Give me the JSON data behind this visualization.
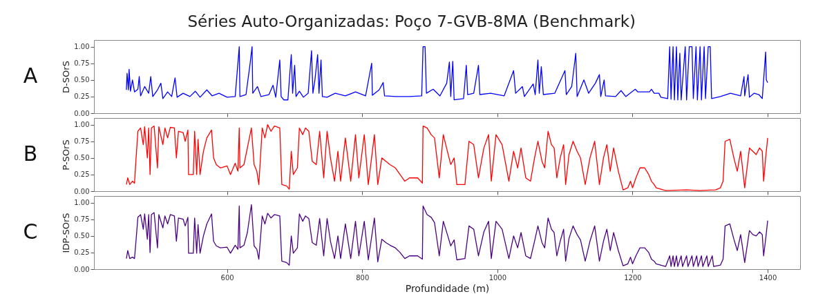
{
  "chart_data": [
    {
      "type": "line",
      "title": "Séries Auto-Organizadas: Poço 7-GVB-8MA (Benchmark)",
      "ylabel": "D-SOrS",
      "annotations": [
        "A"
      ],
      "xlim": [
        403,
        1448
      ],
      "xticks": [
        600,
        800,
        1000,
        1200,
        1400
      ],
      "ylim": [
        0,
        1.1
      ],
      "yticks": [
        {
          "value": 0,
          "label": "0.00"
        },
        {
          "value": 0.25,
          "label": "0.25"
        },
        {
          "value": 0.5,
          "label": "0.50"
        },
        {
          "value": 0.75,
          "label": "0.75"
        },
        {
          "value": 1,
          "label": "1.00"
        }
      ],
      "tick_labels": "y",
      "grid": false,
      "series": [
        {
          "color": "#0000ff",
          "x": [
            451,
            452,
            454,
            455,
            457,
            460,
            463,
            468,
            470,
            472,
            478,
            484,
            487,
            490,
            497,
            502,
            505,
            512,
            518,
            523,
            526,
            535,
            545,
            553,
            560,
            570,
            578,
            588,
            600,
            612,
            618,
            619,
            628,
            634,
            637,
            638,
            645,
            650,
            662,
            668,
            672,
            678,
            680,
            684,
            690,
            694,
            695,
            697,
            700,
            702,
            707,
            713,
            720,
            725,
            727,
            730,
            734,
            736,
            739,
            741,
            748,
            760,
            775,
            790,
            805,
            814,
            815,
            825,
            831,
            833,
            850,
            870,
            888,
            890,
            893,
            895,
            905,
            915,
            925,
            929,
            931,
            934,
            936,
            950,
            954,
            956,
            965,
            972,
            974,
            990,
            1010,
            1024,
            1027,
            1037,
            1040,
            1053,
            1056,
            1060,
            1062,
            1065,
            1068,
            1085,
            1100,
            1102,
            1110,
            1116,
            1118,
            1128,
            1135,
            1145,
            1151,
            1153,
            1158,
            1160,
            1175,
            1183,
            1190,
            1204,
            1208,
            1225,
            1228,
            1232,
            1239,
            1242,
            1252,
            1255,
            1257,
            1260,
            1262,
            1265,
            1267,
            1270,
            1272,
            1278,
            1280,
            1284,
            1288,
            1290,
            1294,
            1296,
            1300,
            1302,
            1306,
            1308,
            1312,
            1315,
            1317,
            1330,
            1345,
            1360,
            1365,
            1366,
            1371,
            1373,
            1380,
            1387,
            1392,
            1397,
            1398,
            1400
          ],
          "values": [
            0.35,
            0.6,
            0.35,
            0.66,
            0.33,
            0.5,
            0.32,
            0.36,
            0.55,
            0.26,
            0.4,
            0.3,
            0.55,
            0.25,
            0.35,
            0.45,
            0.22,
            0.32,
            0.25,
            0.53,
            0.24,
            0.3,
            0.25,
            0.33,
            0.24,
            0.35,
            0.26,
            0.3,
            0.24,
            0.25,
            1.0,
            0.25,
            0.28,
            0.74,
            1.0,
            0.3,
            0.4,
            0.25,
            0.28,
            0.42,
            0.24,
            0.8,
            0.25,
            0.2,
            0.2,
            0.75,
            0.88,
            0.3,
            0.72,
            0.25,
            0.33,
            0.24,
            0.3,
            0.94,
            0.3,
            0.5,
            0.88,
            0.3,
            0.8,
            0.25,
            0.24,
            0.3,
            0.26,
            0.32,
            0.26,
            0.75,
            0.27,
            0.35,
            0.46,
            0.26,
            0.25,
            0.25,
            0.26,
            1.0,
            1.0,
            0.3,
            0.36,
            0.26,
            0.45,
            0.77,
            0.25,
            0.78,
            0.2,
            0.22,
            0.72,
            0.28,
            0.3,
            0.72,
            0.28,
            0.3,
            0.26,
            0.64,
            0.3,
            0.4,
            0.25,
            0.44,
            0.28,
            0.8,
            0.3,
            0.7,
            0.28,
            0.3,
            0.64,
            0.28,
            0.4,
            0.9,
            0.25,
            0.5,
            0.3,
            0.45,
            0.58,
            0.25,
            0.5,
            0.26,
            0.25,
            0.34,
            0.25,
            0.36,
            0.32,
            0.32,
            0.36,
            0.3,
            0.3,
            0.24,
            0.22,
            1.0,
            0.21,
            1.0,
            0.2,
            1.0,
            0.2,
            0.9,
            0.2,
            1.0,
            0.2,
            1.0,
            1.0,
            0.22,
            1.0,
            0.2,
            1.0,
            0.2,
            1.0,
            0.22,
            1.0,
            1.0,
            0.22,
            0.25,
            0.3,
            0.26,
            0.55,
            0.26,
            0.58,
            0.24,
            0.3,
            0.28,
            0.22,
            0.92,
            0.5,
            0.46
          ]
        }
      ]
    },
    {
      "type": "line",
      "ylabel": "P-SOrS",
      "annotations": [
        "B"
      ],
      "xlim": [
        403,
        1448
      ],
      "xticks": [
        600,
        800,
        1000,
        1200,
        1400
      ],
      "ylim": [
        0,
        1.1
      ],
      "yticks": [
        {
          "value": 0,
          "label": "0.00"
        },
        {
          "value": 0.25,
          "label": "0.25"
        },
        {
          "value": 0.5,
          "label": "0.50"
        },
        {
          "value": 0.75,
          "label": "0.75"
        },
        {
          "value": 1,
          "label": "1.00"
        }
      ],
      "tick_labels": "y",
      "grid": false,
      "series": [
        {
          "color": "#ff0000",
          "x": [
            451,
            453,
            456,
            460,
            463,
            465,
            468,
            472,
            476,
            478,
            482,
            484,
            486,
            488,
            492,
            497,
            499,
            505,
            508,
            512,
            516,
            522,
            525,
            528,
            535,
            538,
            542,
            543,
            550,
            552,
            555,
            557,
            560,
            565,
            570,
            577,
            580,
            584,
            590,
            600,
            605,
            612,
            616,
            618,
            619,
            625,
            630,
            636,
            640,
            644,
            647,
            652,
            656,
            660,
            665,
            670,
            678,
            681,
            688,
            692,
            695,
            698,
            704,
            707,
            712,
            716,
            721,
            726,
            732,
            737,
            743,
            748,
            753,
            759,
            764,
            768,
            775,
            783,
            790,
            795,
            803,
            809,
            818,
            823,
            829,
            835,
            841,
            849,
            856,
            863,
            870,
            882,
            889,
            890,
            896,
            902,
            907,
            914,
            920,
            926,
            931,
            936,
            940,
            952,
            958,
            965,
            972,
            980,
            987,
            991,
            998,
            1007,
            1017,
            1024,
            1030,
            1035,
            1042,
            1049,
            1055,
            1060,
            1066,
            1070,
            1075,
            1080,
            1084,
            1088,
            1093,
            1098,
            1101,
            1106,
            1112,
            1118,
            1123,
            1130,
            1137,
            1144,
            1151,
            1157,
            1162,
            1167,
            1172,
            1179,
            1186,
            1193,
            1197,
            1200,
            1205,
            1211,
            1218,
            1224,
            1228,
            1232,
            1235,
            1249,
            1280,
            1300,
            1323,
            1330,
            1334,
            1337,
            1344,
            1350,
            1355,
            1360,
            1366,
            1373,
            1378,
            1383,
            1388,
            1392,
            1394,
            1397,
            1400
          ],
          "values": [
            0.1,
            0.2,
            0.1,
            0.15,
            0.12,
            0.45,
            0.9,
            0.95,
            0.7,
            0.97,
            0.5,
            0.95,
            0.25,
            0.95,
            0.98,
            0.35,
            0.97,
            0.7,
            0.95,
            0.8,
            0.96,
            0.95,
            0.5,
            0.9,
            0.88,
            0.75,
            0.92,
            0.25,
            0.25,
            0.9,
            0.25,
            0.78,
            0.25,
            0.6,
            0.8,
            0.92,
            0.5,
            0.4,
            0.35,
            0.38,
            0.25,
            0.42,
            0.3,
            0.95,
            0.35,
            0.4,
            0.65,
            0.95,
            0.4,
            0.3,
            0.1,
            0.95,
            0.8,
            1.0,
            0.9,
            0.98,
            0.95,
            0.1,
            0.08,
            0.03,
            0.6,
            0.25,
            0.35,
            0.95,
            0.85,
            0.95,
            0.9,
            0.45,
            0.4,
            0.9,
            0.2,
            0.9,
            0.5,
            0.15,
            0.6,
            0.15,
            0.8,
            0.15,
            0.85,
            0.2,
            0.85,
            0.1,
            0.85,
            0.1,
            0.5,
            0.45,
            0.4,
            0.35,
            0.25,
            0.15,
            0.2,
            0.2,
            0.12,
            0.98,
            0.95,
            0.85,
            0.8,
            0.2,
            0.85,
            0.6,
            0.4,
            0.5,
            0.1,
            0.1,
            0.75,
            0.7,
            0.2,
            0.65,
            0.85,
            0.15,
            0.85,
            0.7,
            0.15,
            0.6,
            0.35,
            0.65,
            0.2,
            0.15,
            0.5,
            0.75,
            0.45,
            0.35,
            0.9,
            0.7,
            0.65,
            0.2,
            0.5,
            0.7,
            0.1,
            0.55,
            0.75,
            0.6,
            0.5,
            0.1,
            0.5,
            0.75,
            0.1,
            0.5,
            0.7,
            0.3,
            0.65,
            0.3,
            0.02,
            0.05,
            0.15,
            0.05,
            0.2,
            0.35,
            0.35,
            0.25,
            0.15,
            0.1,
            0.05,
            0.01,
            0.02,
            0.01,
            0.02,
            0.05,
            0.15,
            0.75,
            0.78,
            0.5,
            0.3,
            0.6,
            0.05,
            0.65,
            0.6,
            0.55,
            0.65,
            0.6,
            0.15,
            0.5,
            0.8
          ]
        }
      ]
    },
    {
      "type": "line",
      "xlabel": "Profundidade (m)",
      "ylabel": "IDP-SOrS",
      "annotations": [
        "C"
      ],
      "xlim": [
        403,
        1448
      ],
      "xticks": [
        600,
        800,
        1000,
        1200,
        1400
      ],
      "ylim": [
        0,
        1.1
      ],
      "yticks": [
        {
          "value": 0,
          "label": "0.00"
        },
        {
          "value": 0.25,
          "label": "0.25"
        },
        {
          "value": 0.5,
          "label": "0.50"
        },
        {
          "value": 0.75,
          "label": "0.75"
        },
        {
          "value": 1,
          "label": "1.00"
        }
      ],
      "grid": false,
      "series": [
        {
          "color": "#4b0082",
          "x": [
            451,
            453,
            456,
            460,
            463,
            465,
            468,
            472,
            476,
            478,
            482,
            484,
            486,
            488,
            492,
            497,
            499,
            505,
            508,
            512,
            516,
            522,
            525,
            528,
            535,
            538,
            542,
            543,
            550,
            552,
            555,
            557,
            560,
            565,
            570,
            577,
            580,
            584,
            590,
            600,
            605,
            612,
            616,
            618,
            619,
            625,
            630,
            636,
            640,
            644,
            647,
            652,
            656,
            660,
            665,
            670,
            678,
            681,
            688,
            692,
            695,
            698,
            704,
            707,
            712,
            716,
            721,
            726,
            732,
            737,
            743,
            748,
            753,
            759,
            764,
            768,
            775,
            783,
            790,
            795,
            803,
            809,
            818,
            823,
            829,
            835,
            841,
            849,
            856,
            863,
            870,
            882,
            889,
            890,
            896,
            902,
            907,
            914,
            920,
            926,
            931,
            936,
            940,
            952,
            958,
            965,
            972,
            980,
            987,
            991,
            998,
            1007,
            1017,
            1024,
            1030,
            1035,
            1042,
            1049,
            1055,
            1060,
            1066,
            1070,
            1075,
            1080,
            1084,
            1088,
            1093,
            1098,
            1101,
            1106,
            1112,
            1118,
            1123,
            1130,
            1137,
            1144,
            1151,
            1157,
            1162,
            1167,
            1172,
            1179,
            1186,
            1193,
            1197,
            1200,
            1205,
            1211,
            1218,
            1224,
            1228,
            1232,
            1235,
            1249,
            1255,
            1257,
            1260,
            1262,
            1265,
            1267,
            1272,
            1274,
            1280,
            1282,
            1288,
            1290,
            1295,
            1297,
            1302,
            1304,
            1310,
            1312,
            1318,
            1320,
            1330,
            1334,
            1337,
            1344,
            1350,
            1355,
            1360,
            1366,
            1373,
            1378,
            1383,
            1388,
            1392,
            1394,
            1397,
            1400
          ],
          "values": [
            0.16,
            0.28,
            0.16,
            0.18,
            0.16,
            0.4,
            0.78,
            0.82,
            0.6,
            0.83,
            0.45,
            0.82,
            0.25,
            0.82,
            0.85,
            0.32,
            0.82,
            0.62,
            0.8,
            0.68,
            0.82,
            0.8,
            0.42,
            0.77,
            0.75,
            0.65,
            0.78,
            0.24,
            0.24,
            0.77,
            0.24,
            0.67,
            0.24,
            0.5,
            0.68,
            0.83,
            0.42,
            0.35,
            0.32,
            0.33,
            0.24,
            0.36,
            0.3,
            0.95,
            0.32,
            0.36,
            0.55,
            0.97,
            0.35,
            0.3,
            0.15,
            0.8,
            0.68,
            0.84,
            0.77,
            0.82,
            0.8,
            0.12,
            0.1,
            0.06,
            0.5,
            0.24,
            0.32,
            0.83,
            0.72,
            0.8,
            0.76,
            0.4,
            0.36,
            0.76,
            0.2,
            0.76,
            0.42,
            0.16,
            0.5,
            0.16,
            0.68,
            0.16,
            0.72,
            0.2,
            0.72,
            0.14,
            0.77,
            0.11,
            0.45,
            0.4,
            0.36,
            0.32,
            0.25,
            0.16,
            0.2,
            0.2,
            0.15,
            0.95,
            0.82,
            0.78,
            0.7,
            0.2,
            0.72,
            0.52,
            0.35,
            0.44,
            0.14,
            0.16,
            0.65,
            0.6,
            0.2,
            0.56,
            0.72,
            0.16,
            0.72,
            0.6,
            0.16,
            0.5,
            0.32,
            0.55,
            0.2,
            0.16,
            0.42,
            0.65,
            0.4,
            0.32,
            0.77,
            0.6,
            0.55,
            0.2,
            0.42,
            0.6,
            0.12,
            0.46,
            0.65,
            0.52,
            0.44,
            0.12,
            0.42,
            0.65,
            0.12,
            0.42,
            0.6,
            0.28,
            0.55,
            0.28,
            0.05,
            0.08,
            0.18,
            0.08,
            0.2,
            0.32,
            0.32,
            0.25,
            0.15,
            0.12,
            0.08,
            0.04,
            0.2,
            0.04,
            0.2,
            0.04,
            0.2,
            0.04,
            0.2,
            0.04,
            0.2,
            0.04,
            0.2,
            0.04,
            0.2,
            0.04,
            0.2,
            0.04,
            0.2,
            0.04,
            0.2,
            0.04,
            0.06,
            0.15,
            0.65,
            0.68,
            0.45,
            0.28,
            0.52,
            0.1,
            0.58,
            0.52,
            0.5,
            0.56,
            0.52,
            0.2,
            0.45,
            0.73
          ]
        }
      ]
    }
  ]
}
